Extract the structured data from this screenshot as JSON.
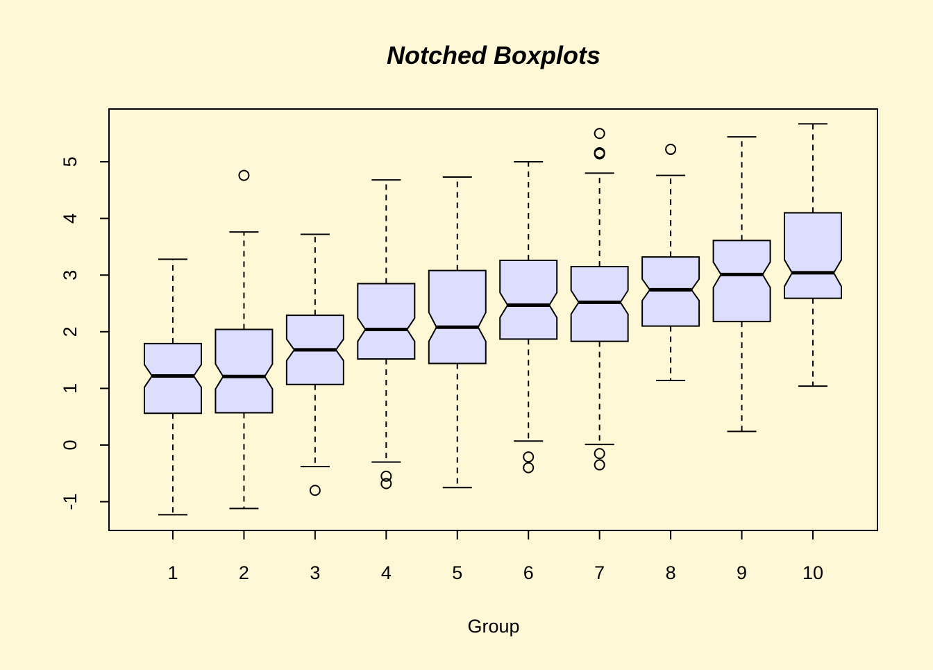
{
  "colors": {
    "background": "#FFF8D6",
    "box_fill": "#DDDDFF",
    "stroke": "#000000"
  },
  "chart_data": {
    "type": "boxplot",
    "title": "Notched Boxplots",
    "xlabel": "Group",
    "ylabel": "",
    "ylim": [
      -1.5,
      5.95
    ],
    "y_ticks": [
      -1,
      0,
      1,
      2,
      3,
      4,
      5
    ],
    "categories": [
      "1",
      "2",
      "3",
      "4",
      "5",
      "6",
      "7",
      "8",
      "9",
      "10"
    ],
    "boxes": [
      {
        "group": "1",
        "whisker_low": -1.23,
        "q1": 0.56,
        "median": 1.22,
        "q3": 1.79,
        "whisker_high": 3.28,
        "notch_low": 1.02,
        "notch_high": 1.42,
        "outliers": []
      },
      {
        "group": "2",
        "whisker_low": -1.12,
        "q1": 0.57,
        "median": 1.21,
        "q3": 2.04,
        "whisker_high": 3.76,
        "notch_low": 0.99,
        "notch_high": 1.43,
        "outliers": [
          4.76
        ]
      },
      {
        "group": "3",
        "whisker_low": -0.38,
        "q1": 1.07,
        "median": 1.68,
        "q3": 2.29,
        "whisker_high": 3.72,
        "notch_low": 1.49,
        "notch_high": 1.87,
        "outliers": [
          -0.8
        ]
      },
      {
        "group": "4",
        "whisker_low": -0.3,
        "q1": 1.52,
        "median": 2.04,
        "q3": 2.85,
        "whisker_high": 4.68,
        "notch_low": 1.83,
        "notch_high": 2.24,
        "outliers": [
          -0.55,
          -0.68
        ]
      },
      {
        "group": "5",
        "whisker_low": -0.75,
        "q1": 1.44,
        "median": 2.08,
        "q3": 3.08,
        "whisker_high": 4.73,
        "notch_low": 1.83,
        "notch_high": 2.34,
        "outliers": []
      },
      {
        "group": "6",
        "whisker_low": 0.07,
        "q1": 1.87,
        "median": 2.47,
        "q3": 3.26,
        "whisker_high": 5.0,
        "notch_low": 2.25,
        "notch_high": 2.69,
        "outliers": [
          -0.21,
          -0.4
        ]
      },
      {
        "group": "7",
        "whisker_low": 0.01,
        "q1": 1.83,
        "median": 2.52,
        "q3": 3.15,
        "whisker_high": 4.8,
        "notch_low": 2.31,
        "notch_high": 2.73,
        "outliers": [
          5.5,
          5.16,
          5.14,
          -0.15,
          -0.35
        ]
      },
      {
        "group": "8",
        "whisker_low": 1.14,
        "q1": 2.1,
        "median": 2.74,
        "q3": 3.32,
        "whisker_high": 4.76,
        "notch_low": 2.55,
        "notch_high": 2.93,
        "outliers": [
          5.22
        ]
      },
      {
        "group": "9",
        "whisker_low": 0.24,
        "q1": 2.18,
        "median": 3.01,
        "q3": 3.61,
        "whisker_high": 5.44,
        "notch_low": 2.78,
        "notch_high": 3.23,
        "outliers": []
      },
      {
        "group": "10",
        "whisker_low": 1.04,
        "q1": 2.59,
        "median": 3.04,
        "q3": 4.1,
        "whisker_high": 5.67,
        "notch_low": 2.8,
        "notch_high": 3.27,
        "outliers": []
      }
    ],
    "grid": false,
    "legend": "none"
  }
}
